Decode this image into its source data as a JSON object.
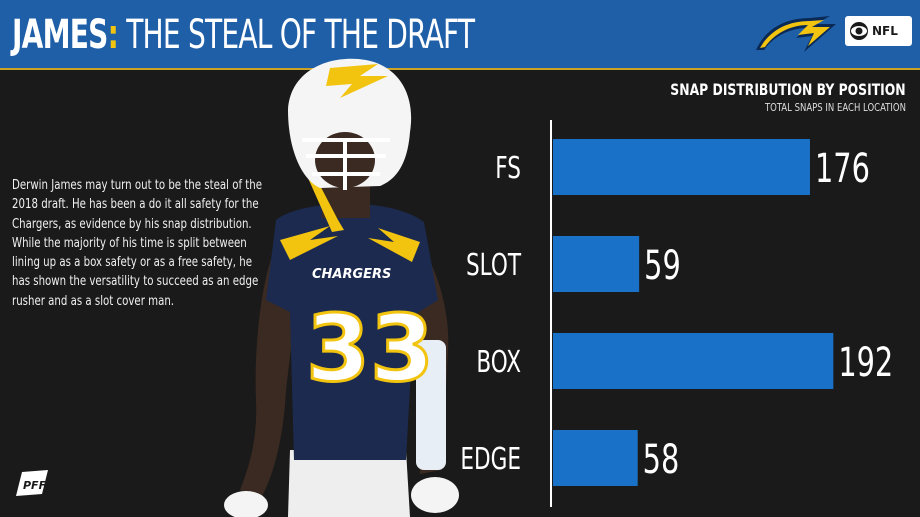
{
  "header": {
    "title_bold": "JAMES",
    "title_colon": ":",
    "title_rest": " THE STEAL OF THE DRAFT",
    "network_label": "NFL"
  },
  "blurb": "Derwin James may turn out to be the steal of the 2018 draft. He has been a do it all safety for the Chargers, as evidence by his snap distribution. While the majority of his time is split between lining up as a box safety or as a free safety, he has shown the versatility to succeed as an edge rusher and as a slot cover man.",
  "player": {
    "jersey_number": "33",
    "jersey_wordmark": "CHARGERS"
  },
  "colors": {
    "header_blue": "#1f5fa8",
    "bar_blue": "#1a72c8",
    "accent_gold": "#f2c40f",
    "background": "#1a1a1a"
  },
  "chart_data": {
    "type": "bar",
    "orientation": "horizontal",
    "title": "SNAP DISTRIBUTION BY POSITION",
    "subtitle": "TOTAL SNAPS IN EACH LOCATION",
    "categories": [
      "FS",
      "SLOT",
      "BOX",
      "EDGE"
    ],
    "values": [
      176,
      59,
      192,
      58
    ],
    "xlim": [
      0,
      200
    ],
    "grid": false,
    "legend": "none",
    "data_labels": true
  }
}
